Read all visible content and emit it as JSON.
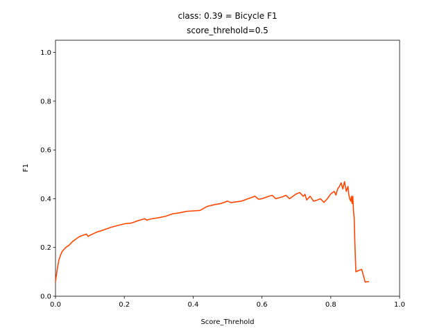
{
  "chart_data": {
    "type": "line",
    "title": "class: 0.39 = Bicycle F1",
    "subtitle": "score_threhold=0.5",
    "xlabel": "Score_Threhold",
    "ylabel": "F1",
    "xlim": [
      0.0,
      1.0
    ],
    "ylim": [
      0.0,
      1.05
    ],
    "xticks": [
      "0.0",
      "0.2",
      "0.4",
      "0.6",
      "0.8",
      "1.0"
    ],
    "yticks": [
      "0.0",
      "0.2",
      "0.4",
      "0.6",
      "0.8",
      "1.0"
    ],
    "grid": false,
    "legend": "none",
    "series": [
      {
        "color": "#ff4500",
        "x": [
          0.0,
          0.005,
          0.01,
          0.015,
          0.02,
          0.03,
          0.04,
          0.05,
          0.06,
          0.07,
          0.08,
          0.09,
          0.095,
          0.1,
          0.12,
          0.14,
          0.16,
          0.18,
          0.2,
          0.22,
          0.24,
          0.26,
          0.265,
          0.28,
          0.3,
          0.32,
          0.34,
          0.36,
          0.38,
          0.4,
          0.42,
          0.44,
          0.46,
          0.48,
          0.5,
          0.51,
          0.52,
          0.54,
          0.56,
          0.58,
          0.59,
          0.6,
          0.62,
          0.63,
          0.64,
          0.66,
          0.67,
          0.68,
          0.7,
          0.71,
          0.72,
          0.725,
          0.73,
          0.74,
          0.75,
          0.76,
          0.77,
          0.78,
          0.79,
          0.8,
          0.81,
          0.815,
          0.82,
          0.825,
          0.83,
          0.835,
          0.84,
          0.845,
          0.85,
          0.852,
          0.855,
          0.858,
          0.86,
          0.862,
          0.864,
          0.866,
          0.868,
          0.87,
          0.873,
          0.88,
          0.89,
          0.9,
          0.91
        ],
        "y": [
          0.06,
          0.11,
          0.15,
          0.17,
          0.185,
          0.2,
          0.21,
          0.225,
          0.235,
          0.245,
          0.25,
          0.255,
          0.245,
          0.25,
          0.263,
          0.272,
          0.282,
          0.29,
          0.297,
          0.3,
          0.31,
          0.318,
          0.312,
          0.318,
          0.322,
          0.328,
          0.338,
          0.342,
          0.348,
          0.35,
          0.352,
          0.368,
          0.375,
          0.38,
          0.39,
          0.384,
          0.386,
          0.39,
          0.4,
          0.41,
          0.398,
          0.4,
          0.41,
          0.414,
          0.4,
          0.408,
          0.414,
          0.4,
          0.42,
          0.425,
          0.41,
          0.418,
          0.395,
          0.41,
          0.39,
          0.394,
          0.4,
          0.385,
          0.4,
          0.42,
          0.43,
          0.415,
          0.44,
          0.45,
          0.465,
          0.44,
          0.47,
          0.43,
          0.45,
          0.42,
          0.4,
          0.39,
          0.41,
          0.38,
          0.41,
          0.35,
          0.32,
          0.22,
          0.1,
          0.105,
          0.11,
          0.058,
          0.06
        ]
      }
    ]
  }
}
